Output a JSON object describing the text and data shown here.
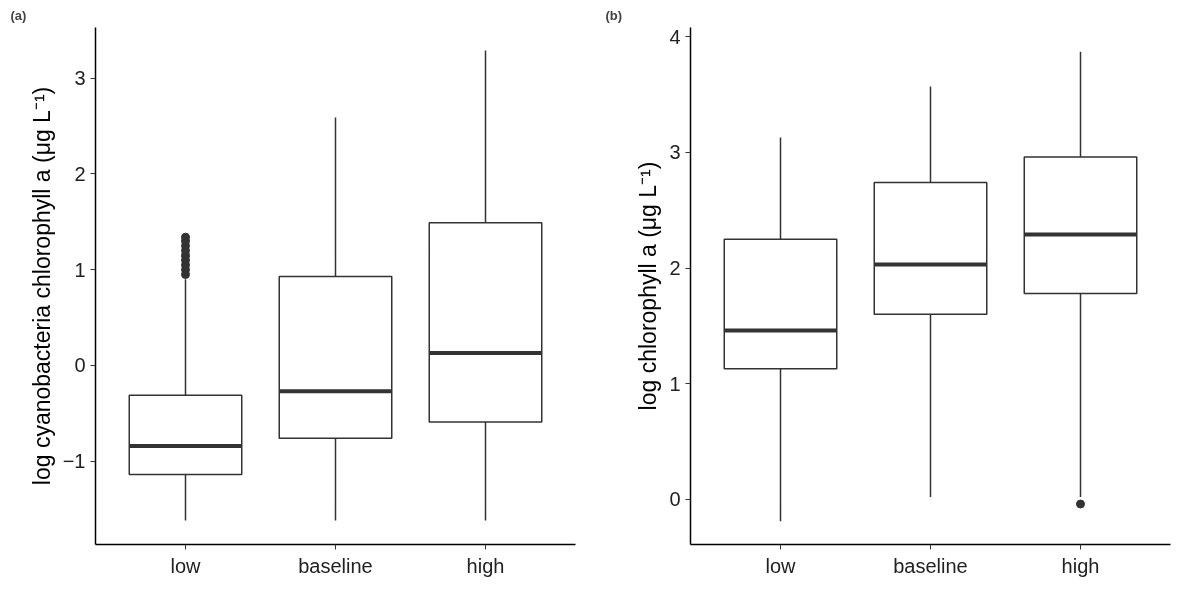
{
  "chart_data": [
    {
      "type": "box",
      "title": "(a)",
      "ylabel": "log cyanobacteria chlorophyll a (μg L⁻¹)",
      "categories": [
        "low",
        "baseline",
        "high"
      ],
      "ylim": [
        -1.87,
        3.53
      ],
      "yticks": [
        {
          "value": -1,
          "label": "−1"
        },
        0,
        1,
        2,
        3
      ],
      "grid": false,
      "boxes": [
        {
          "low": -1.62,
          "q1": -1.14,
          "median": -0.84,
          "q3": -0.31,
          "high": 0.9,
          "outliers": [
            0.95,
            1.0,
            1.05,
            1.1,
            1.15,
            1.2,
            1.25,
            1.3,
            1.34
          ]
        },
        {
          "low": -1.62,
          "q1": -0.76,
          "median": -0.27,
          "q3": 0.93,
          "high": 2.59
        },
        {
          "low": -1.62,
          "q1": -0.59,
          "median": 0.13,
          "q3": 1.49,
          "high": 3.29
        }
      ]
    },
    {
      "type": "box",
      "title": "(b)",
      "ylabel": "log chlorophyll a (μg L⁻¹)",
      "categories": [
        "low",
        "baseline",
        "high"
      ],
      "ylim": [
        -0.39,
        4.08
      ],
      "yticks": [
        0,
        1,
        2,
        3,
        4
      ],
      "grid": false,
      "boxes": [
        {
          "low": -0.19,
          "q1": 1.13,
          "median": 1.46,
          "q3": 2.25,
          "high": 3.13
        },
        {
          "low": 0.02,
          "q1": 1.6,
          "median": 2.03,
          "q3": 2.74,
          "high": 3.57
        },
        {
          "low": 0.02,
          "q1": 1.78,
          "median": 2.29,
          "q3": 2.96,
          "high": 3.87,
          "outliers": [
            -0.04
          ]
        }
      ]
    }
  ]
}
